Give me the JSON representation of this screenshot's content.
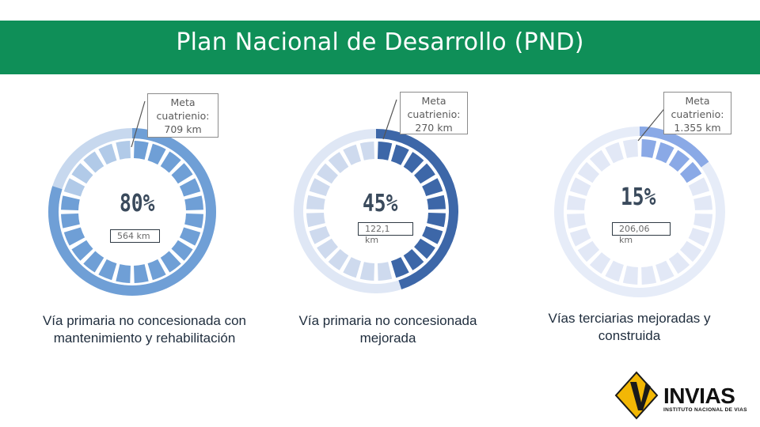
{
  "header": {
    "title": "Plan Nacional de Desarrollo (PND)",
    "color": "#0f8f58"
  },
  "gauges": [
    {
      "callout": [
        "Meta",
        "cuatrienio:",
        "709 km"
      ],
      "percent_label": "80%",
      "percent": 0.8,
      "value_label": "564 km",
      "caption": [
        "Vía primaria no concesionada con",
        "mantenimiento y rehabilitación"
      ],
      "color": "#6f9fd6"
    },
    {
      "callout": [
        "Meta",
        "cuatrienio:",
        "270 km"
      ],
      "percent_label": "45%",
      "percent": 0.45,
      "value_label": "122,1 km",
      "caption": [
        "Vía primaria no concesionada",
        "mejorada"
      ],
      "color": "#3d67a8"
    },
    {
      "callout": [
        "Meta",
        "cuatrienio:",
        "1.355 km"
      ],
      "percent_label": "15%",
      "percent": 0.15,
      "value_label": "206,06 km",
      "caption": [
        "Vías terciarias mejoradas y",
        "construida"
      ],
      "color": "#8aa9e6"
    }
  ],
  "logo": {
    "name": "INVIAS",
    "subtitle": "INSTITUTO NACIONAL DE VIAS",
    "icon": "invias-logo-icon"
  }
}
